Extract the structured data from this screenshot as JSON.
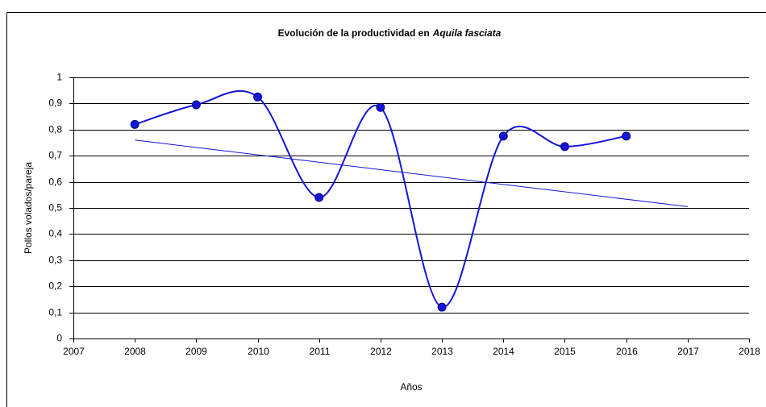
{
  "chart_data": {
    "type": "line",
    "title": [
      "Evolución de la productividad en",
      "Aquila fasciata"
    ],
    "xlabel": "Años",
    "ylabel": "Pollos volados/pareja",
    "xlim": [
      2007,
      2018
    ],
    "xticks": [
      2007,
      2008,
      2009,
      2010,
      2011,
      2012,
      2013,
      2014,
      2015,
      2016,
      2017,
      2018
    ],
    "ylim": [
      0,
      1
    ],
    "yticks": [
      0,
      {
        "value": 0.1,
        "label": "0,1"
      },
      {
        "value": 0.2,
        "label": "0,2"
      },
      {
        "value": 0.3,
        "label": "0,3"
      },
      {
        "value": 0.4,
        "label": "0,4"
      },
      {
        "value": 0.5,
        "label": "0,5"
      },
      {
        "value": 0.6,
        "label": "0,6"
      },
      {
        "value": 0.7,
        "label": "0,7"
      },
      {
        "value": 0.8,
        "label": "0,8"
      },
      {
        "value": 0.9,
        "label": "0,9"
      },
      1
    ],
    "grid": true,
    "series": [
      {
        "color": "#1515d6",
        "smooth": true,
        "markers": true,
        "x": [
          2008,
          2009,
          2010,
          2011,
          2012,
          2013,
          2014,
          2015,
          2016
        ],
        "values": [
          0.82,
          0.895,
          0.925,
          0.54,
          0.885,
          0.12,
          0.775,
          0.735,
          0.775
        ]
      },
      {
        "color": "#1515d6",
        "smooth": false,
        "markers": false,
        "x": [
          2008,
          2017
        ],
        "values": [
          0.76,
          0.505
        ]
      }
    ]
  }
}
